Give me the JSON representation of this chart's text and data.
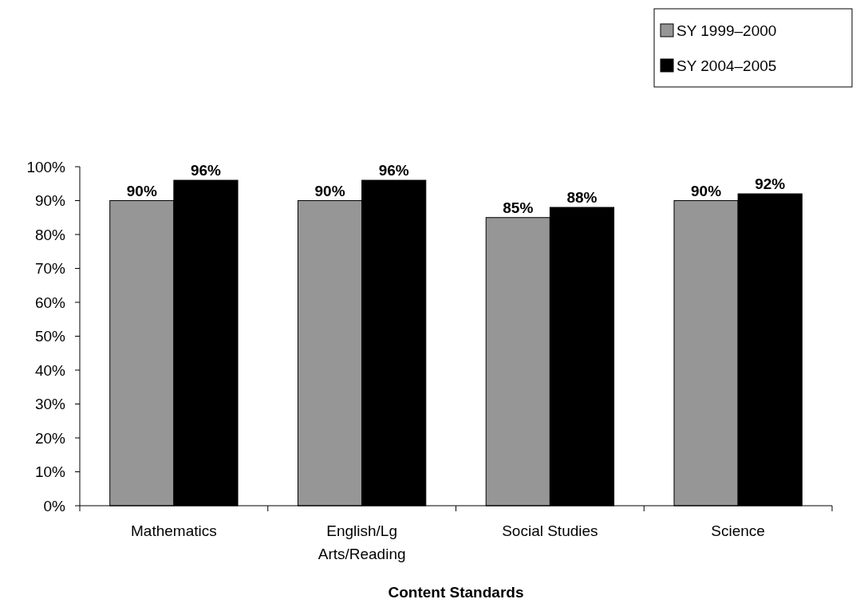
{
  "chart_data": {
    "type": "bar",
    "xlabel": "Content Standards",
    "categories": [
      "Mathematics",
      "English/Lg Arts/Reading",
      "Social Studies",
      "Science"
    ],
    "series": [
      {
        "name": "SY 1999–2000",
        "color": "#969696",
        "values": [
          90,
          90,
          85,
          90
        ],
        "value_labels": [
          "90%",
          "90%",
          "85%",
          "90%"
        ]
      },
      {
        "name": "SY 2004–2005",
        "color": "#000000",
        "values": [
          96,
          96,
          88,
          92
        ],
        "value_labels": [
          "96%",
          "96%",
          "88%",
          "92%"
        ]
      }
    ],
    "ylim": [
      0,
      100
    ],
    "yticks": [
      {
        "value": 0,
        "label": "0%"
      },
      {
        "value": 10,
        "label": "10%"
      },
      {
        "value": 20,
        "label": "20%"
      },
      {
        "value": 30,
        "label": "30%"
      },
      {
        "value": 40,
        "label": "40%"
      },
      {
        "value": 50,
        "label": "50%"
      },
      {
        "value": 60,
        "label": "60%"
      },
      {
        "value": 70,
        "label": "70%"
      },
      {
        "value": 80,
        "label": "80%"
      },
      {
        "value": 90,
        "label": "90%"
      },
      {
        "value": 100,
        "label": "100%"
      }
    ],
    "grid": false,
    "legend": "top right"
  }
}
